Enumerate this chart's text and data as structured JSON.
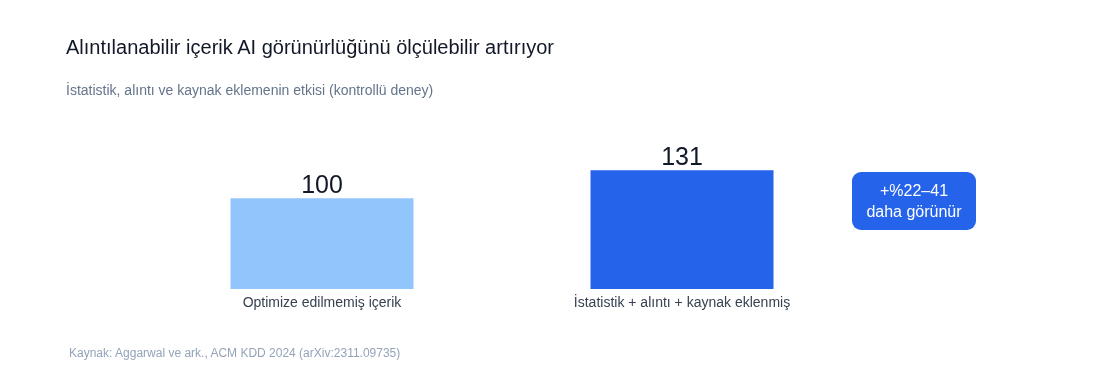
{
  "chart_data": {
    "type": "bar",
    "title": "Alıntılanabilir içerik AI görünürlüğünü ölçülebilir artırıyor",
    "subtitle": "İstatistik, alıntı ve kaynak eklemenin etkisi (kontrollü deney)",
    "categories": [
      "Optimize edilmemiş içerik",
      "İstatistik + alıntı + kaynak eklenmiş"
    ],
    "values": [
      100,
      131
    ],
    "colors": [
      "#93c5fd",
      "#2563eb"
    ],
    "data_labels": true,
    "annotations": [
      "+%22–41 daha görünür",
      "Kaynak: Aggarwal ve ark., ACM KDD 2024 (arXiv:2311.09735)"
    ]
  }
}
